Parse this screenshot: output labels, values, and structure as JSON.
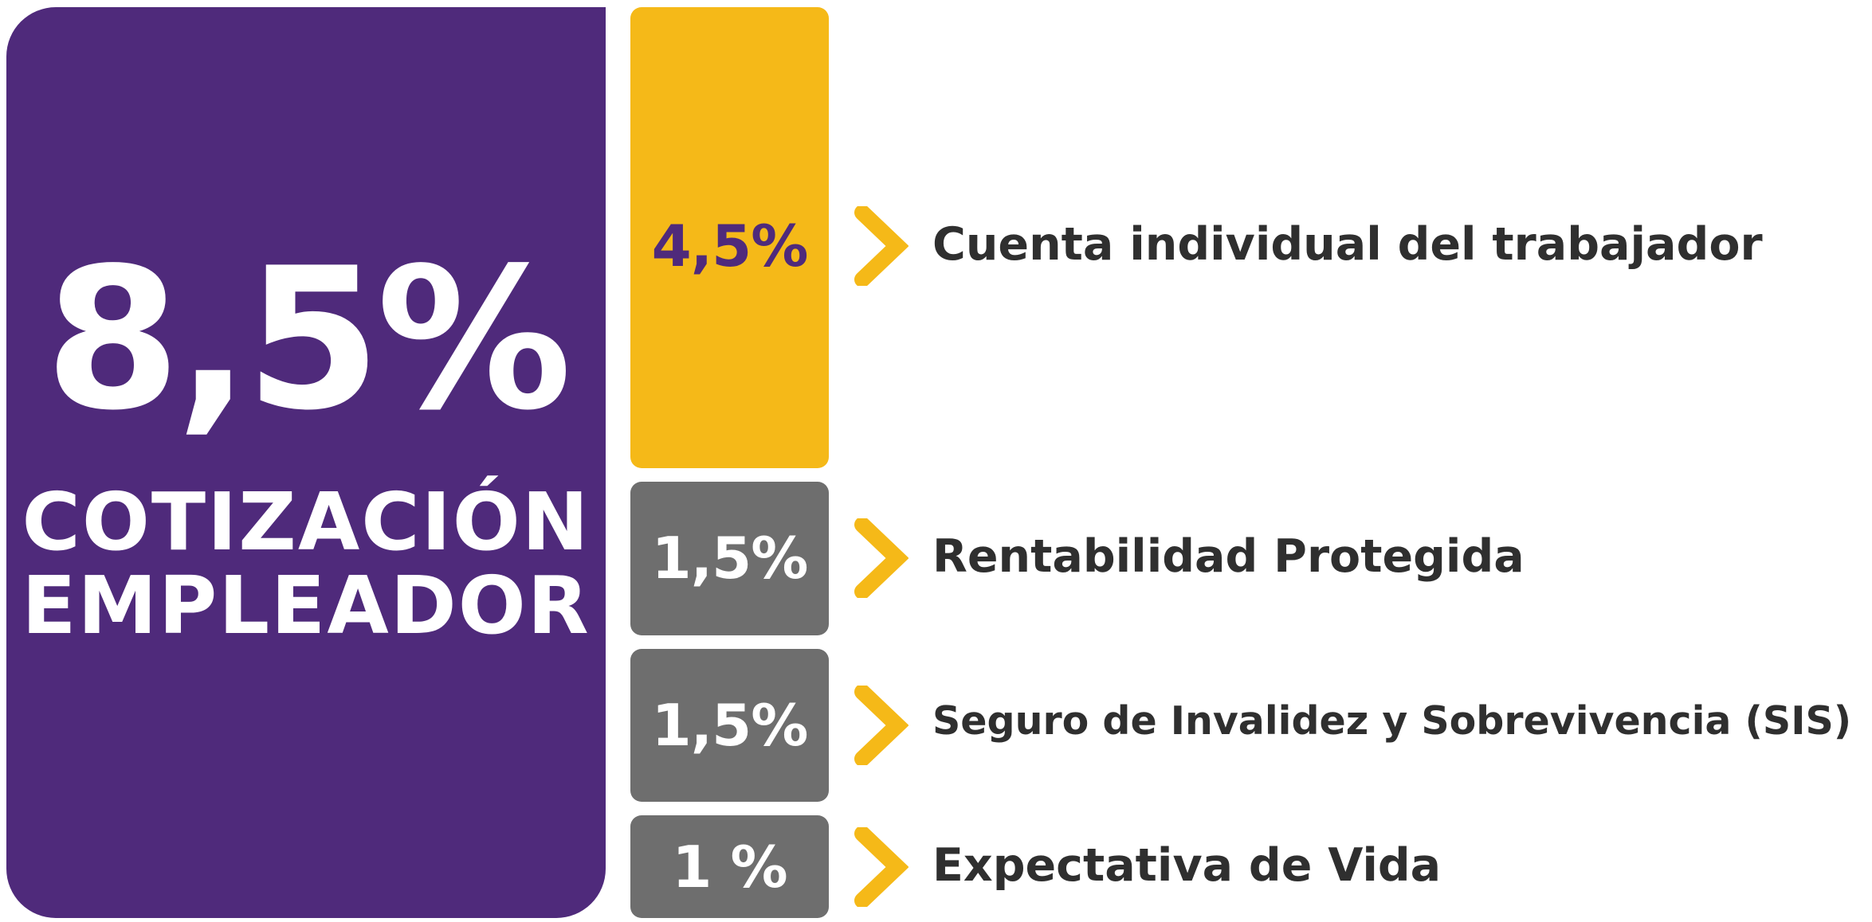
{
  "total": {
    "value": "8,5%",
    "caption_line1": "COTIZACIÓN",
    "caption_line2": "EMPLEADOR"
  },
  "colors": {
    "purple": "#4f2a7b",
    "yellow": "#f5b918",
    "gray": "#6e6e6e",
    "text_dark": "#2f2f2f",
    "white": "#ffffff"
  },
  "chart_data": {
    "type": "bar",
    "total": 8.5,
    "unit": "%",
    "categories": [
      "Cuenta individual del trabajador",
      "Rentabilidad Protegida",
      "Seguro de Invalidez y Sobrevivencia (SIS)",
      "Expectativa de Vida"
    ],
    "values": [
      4.5,
      1.5,
      1.5,
      1
    ],
    "labels": [
      "4,5%",
      "1,5%",
      "1,5%",
      "1 %"
    ],
    "bar_colors": [
      "#f5b918",
      "#6e6e6e",
      "#6e6e6e",
      "#6e6e6e"
    ],
    "label_colors": [
      "#4f2a7b",
      "#ffffff",
      "#ffffff",
      "#ffffff"
    ],
    "arrow_icon": "chevron-right-icon",
    "arrow_color": "#f5b918"
  }
}
